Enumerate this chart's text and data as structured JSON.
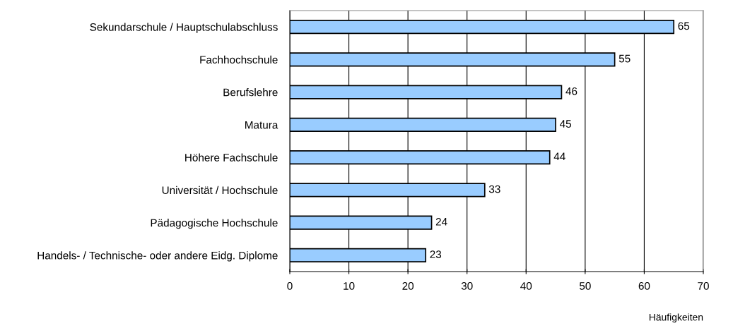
{
  "chart_data": {
    "type": "bar",
    "orientation": "horizontal",
    "xlabel": "Häufigkeiten",
    "categories": [
      "Sekundarschule / Hauptschulabschluss",
      "Fachhochschule",
      "Berufslehre",
      "Matura",
      "Höhere Fachschule",
      "Universität / Hochschule",
      "Pädagogische Hochschule",
      "Handels- / Technische- oder andere Eidg. Diplome"
    ],
    "values": [
      65,
      55,
      46,
      45,
      44,
      33,
      24,
      23
    ],
    "color": "#99ccff",
    "xlim": [
      0,
      70
    ],
    "xticks": [
      0,
      10,
      20,
      30,
      40,
      50,
      60,
      70
    ],
    "grid": "x",
    "data_labels": true
  }
}
